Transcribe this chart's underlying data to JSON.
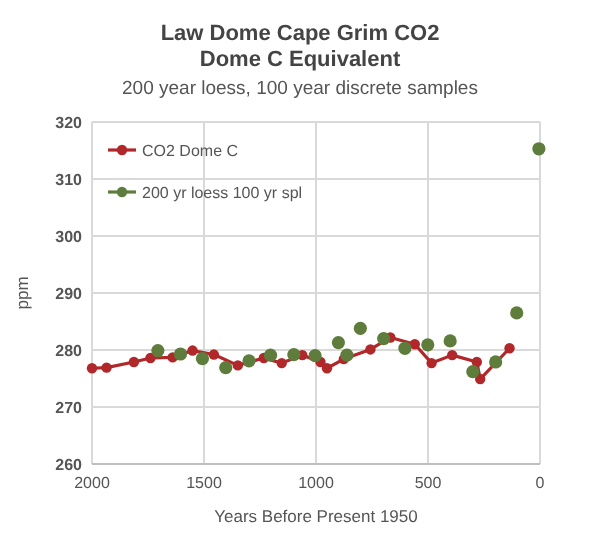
{
  "chart_data": {
    "type": "line",
    "title": "Law Dome Cape Grim CO2\nDome C Equivalent",
    "subtitle": "200 year loess, 100 year discrete samples",
    "xlabel": "Years Before Present 1950",
    "ylabel": "ppm",
    "xlim": [
      2000,
      0
    ],
    "xticks": [
      2000,
      1500,
      1000,
      500,
      0
    ],
    "ylim": [
      260,
      320
    ],
    "yticks": [
      260,
      270,
      280,
      290,
      300,
      310,
      320
    ],
    "grid": true,
    "legend": "top left",
    "marker": "circle",
    "series": [
      {
        "name": "CO2 Dome C",
        "color": "#b0282a",
        "x": [
          2000,
          1935,
          1813,
          1739,
          1640,
          1551,
          1456,
          1349,
          1233,
          1153,
          1061,
          980,
          951,
          876,
          757,
          668,
          559,
          484,
          392,
          282,
          267,
          136
        ],
        "values": [
          276.8,
          276.9,
          277.9,
          278.6,
          278.7,
          279.9,
          279.2,
          277.3,
          278.6,
          277.7,
          279.1,
          277.9,
          276.8,
          278.4,
          280.1,
          282.2,
          281.0,
          277.7,
          279.1,
          277.9,
          274.9,
          280.3
        ]
      },
      {
        "name": "200 yr loess 100 yr spl",
        "type": "scatter",
        "color": "#5e7d3c",
        "x": [
          1706,
          1605,
          1507,
          1403,
          1299,
          1203,
          1099,
          1004,
          900,
          862,
          802,
          698,
          603,
          501,
          401,
          300,
          198,
          104,
          5
        ],
        "values": [
          279.9,
          279.3,
          278.5,
          276.9,
          278.1,
          279.1,
          279.2,
          279.0,
          281.3,
          279.1,
          283.8,
          282.0,
          280.3,
          280.9,
          281.6,
          276.2,
          277.9,
          286.5,
          315.3
        ]
      }
    ]
  }
}
